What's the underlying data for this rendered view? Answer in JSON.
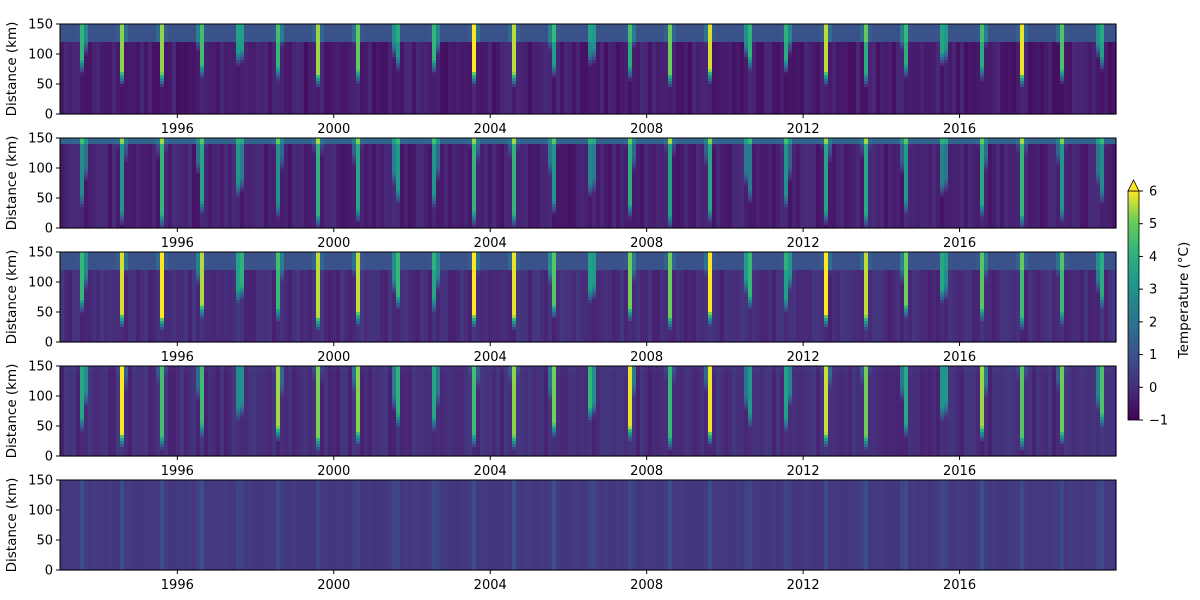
{
  "chart_data": {
    "type": "heatmap",
    "xlim": [
      1993.0,
      2020.0
    ],
    "xticks": [
      1996,
      2000,
      2004,
      2008,
      2012,
      2016
    ],
    "xtick_labels": [
      "1996",
      "2000",
      "2004",
      "2008",
      "2012",
      "2016"
    ],
    "ylim": [
      0,
      150
    ],
    "yticks": [
      0,
      50,
      100,
      150
    ],
    "ytick_labels": [
      "0",
      "50",
      "100",
      "150"
    ],
    "ylabel": "Distance (km)",
    "colorbar": {
      "label": "Temperature (°C)",
      "vmin": -1,
      "vmax": 6,
      "extend": "max",
      "ticks": [
        -1,
        0,
        1,
        2,
        3,
        4,
        5,
        6
      ],
      "tick_labels": [
        "−1",
        "0",
        "1",
        "2",
        "3",
        "4",
        "5",
        "6"
      ],
      "colormap": "viridis"
    },
    "panels": [
      {
        "id": "panel-1",
        "summer_depth_km": 55,
        "surface_layer_km": 120,
        "summer_peak": 6.0,
        "winter_level": 0.5,
        "deep_level": -0.4
      },
      {
        "id": "panel-2",
        "summer_depth_km": 10,
        "surface_layer_km": 140,
        "summer_peak": 4.5,
        "winter_level": 1.0,
        "deep_level": -0.3
      },
      {
        "id": "panel-3",
        "summer_depth_km": 30,
        "surface_layer_km": 120,
        "summer_peak": 6.0,
        "winter_level": 0.5,
        "deep_level": 0.0
      },
      {
        "id": "panel-4",
        "summer_depth_km": 20,
        "surface_layer_km": 150,
        "summer_peak": 6.0,
        "winter_level": 0.3,
        "deep_level": 0.0
      },
      {
        "id": "panel-5",
        "summer_depth_km": 0,
        "surface_layer_km": 150,
        "summer_peak": 0.6,
        "winter_level": 0.3,
        "deep_level": 0.3
      }
    ]
  }
}
